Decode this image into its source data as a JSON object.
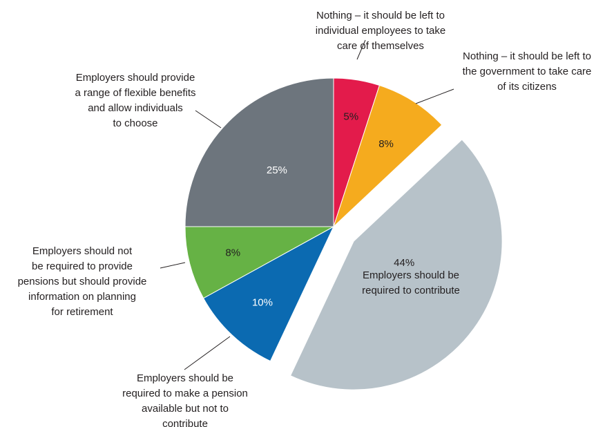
{
  "chart_data": {
    "type": "pie",
    "start_angle": "12 o'clock",
    "direction": "clockwise",
    "exploded_slice": "Employers should be required to contribute",
    "slices": [
      {
        "label_lines": [
          "Nothing – it should be left to",
          "individual employees to take",
          "care of themselves"
        ],
        "value": 5,
        "value_label": "5%",
        "color": "#e31b4b",
        "value_text_color": "#231f20"
      },
      {
        "label_lines": [
          "Nothing – it should be left to",
          "the government to take care",
          "of  its citizens"
        ],
        "value": 8,
        "value_label": "8%",
        "color": "#f5ab1e",
        "value_text_color": "#231f20"
      },
      {
        "label_lines": [
          "Employers should be",
          "required to contribute"
        ],
        "value": 44,
        "value_label": "44%",
        "color": "#b7c2c9",
        "value_text_color": "#231f20"
      },
      {
        "label_lines": [
          "Employers should be",
          "required to make a pension",
          "available but not to",
          "contribute"
        ],
        "value": 10,
        "value_label": "10%",
        "color": "#0b6ab1",
        "value_text_color": "#ffffff"
      },
      {
        "label_lines": [
          "Employers should not",
          "be required to provide",
          "pensions but should provide",
          "information on planning",
          "for retirement"
        ],
        "value": 8,
        "value_label": "8%",
        "color": "#66b245",
        "value_text_color": "#231f20"
      },
      {
        "label_lines": [
          "Employers should provide",
          "a range of flexible benefits",
          "and allow individuals",
          "to choose"
        ],
        "value": 25,
        "value_label": "25%",
        "color": "#6d757d",
        "value_text_color": "#ffffff"
      }
    ]
  }
}
